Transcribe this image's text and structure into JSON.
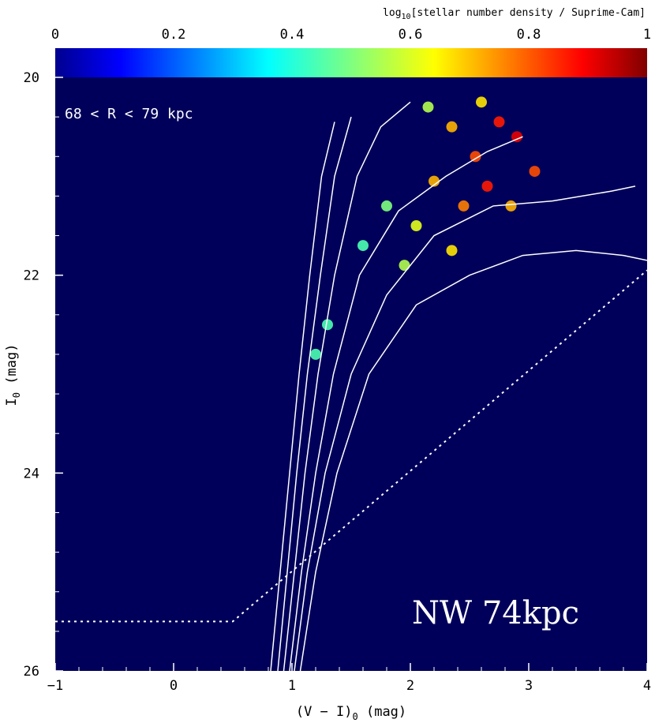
{
  "chart_data": {
    "type": "heatmap",
    "title": "",
    "xlabel": "(V − I)",
    "xlabel_sub": "0",
    "xlabel_unit": " (mag)",
    "ylabel": "I",
    "ylabel_sub": "0",
    "ylabel_unit": " (mag)",
    "xlim": [
      -1,
      4
    ],
    "ylim": [
      26,
      20
    ],
    "y_inverted": true,
    "xticks": [
      -1,
      0,
      1,
      2,
      3,
      4
    ],
    "yticks": [
      20,
      22,
      24,
      26
    ],
    "panel_label": "68 < R < 79 kpc",
    "field_label": "NW 74kpc",
    "background_color": "#00005a",
    "colorbar": {
      "title_prefix": "log",
      "title_sub": "10",
      "title_suffix": "[stellar number density / Suprime-Cam]",
      "range": [
        0,
        1
      ],
      "ticks": [
        "0",
        "0.2",
        "0.4",
        "0.6",
        "0.8",
        "1"
      ],
      "colormap": "jet"
    },
    "density_clumps": [
      {
        "x": 2.75,
        "y": 20.45,
        "v": 0.85
      },
      {
        "x": 2.9,
        "y": 20.6,
        "v": 0.9
      },
      {
        "x": 2.55,
        "y": 20.8,
        "v": 0.8
      },
      {
        "x": 2.35,
        "y": 20.5,
        "v": 0.7
      },
      {
        "x": 3.05,
        "y": 20.95,
        "v": 0.8
      },
      {
        "x": 2.65,
        "y": 21.1,
        "v": 0.85
      },
      {
        "x": 2.2,
        "y": 21.05,
        "v": 0.7
      },
      {
        "x": 2.45,
        "y": 21.3,
        "v": 0.75
      },
      {
        "x": 2.85,
        "y": 21.3,
        "v": 0.7
      },
      {
        "x": 2.05,
        "y": 21.5,
        "v": 0.6
      },
      {
        "x": 2.35,
        "y": 21.75,
        "v": 0.65
      },
      {
        "x": 1.95,
        "y": 21.9,
        "v": 0.55
      },
      {
        "x": 2.6,
        "y": 20.25,
        "v": 0.65
      },
      {
        "x": 2.15,
        "y": 20.3,
        "v": 0.55
      },
      {
        "x": 1.8,
        "y": 21.3,
        "v": 0.5
      },
      {
        "x": 1.6,
        "y": 21.7,
        "v": 0.45
      },
      {
        "x": 1.3,
        "y": 22.5,
        "v": 0.45
      },
      {
        "x": 1.2,
        "y": 22.8,
        "v": 0.45
      }
    ],
    "isochrones": [
      {
        "x": [
          0.82,
          0.9,
          0.98,
          1.06,
          1.15,
          1.25,
          1.36
        ],
        "y": [
          26.0,
          25.0,
          24.0,
          23.0,
          22.0,
          21.0,
          20.45
        ]
      },
      {
        "x": [
          0.88,
          0.96,
          1.04,
          1.13,
          1.24,
          1.36,
          1.5
        ],
        "y": [
          26.0,
          25.0,
          24.0,
          23.0,
          22.0,
          21.0,
          20.4
        ]
      },
      {
        "x": [
          0.93,
          1.02,
          1.11,
          1.22,
          1.36,
          1.55,
          1.75,
          2.0
        ],
        "y": [
          26.0,
          25.0,
          24.0,
          23.0,
          22.0,
          21.0,
          20.5,
          20.25
        ]
      },
      {
        "x": [
          0.98,
          1.08,
          1.2,
          1.35,
          1.57,
          1.9,
          2.3,
          2.65,
          2.95
        ],
        "y": [
          26.0,
          25.0,
          24.0,
          23.0,
          22.0,
          21.35,
          21.0,
          20.75,
          20.6
        ]
      },
      {
        "x": [
          1.02,
          1.13,
          1.28,
          1.5,
          1.8,
          2.2,
          2.7,
          3.2,
          3.7,
          3.9
        ],
        "y": [
          26.0,
          25.0,
          24.0,
          23.0,
          22.2,
          21.6,
          21.3,
          21.25,
          21.15,
          21.1
        ]
      },
      {
        "x": [
          1.07,
          1.2,
          1.38,
          1.65,
          2.05,
          2.5,
          2.95,
          3.4,
          3.8,
          4.0
        ],
        "y": [
          26.0,
          25.0,
          24.0,
          23.0,
          22.3,
          22.0,
          21.8,
          21.75,
          21.8,
          21.85
        ]
      }
    ],
    "completeness_limit": {
      "x": [
        -1.0,
        0.5,
        4.0
      ],
      "y": [
        25.5,
        25.5,
        21.95
      ]
    }
  }
}
